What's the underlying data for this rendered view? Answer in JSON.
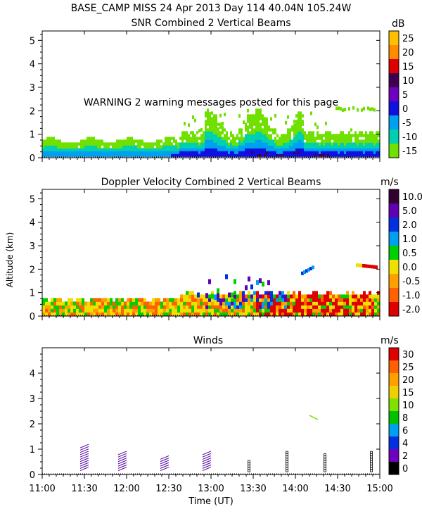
{
  "header": {
    "title": "BASE_CAMP MISS  24 Apr 2013 Day 114 40.04N 105.24W"
  },
  "chart_data": [
    {
      "type": "heatmap",
      "title": "SNR Combined 2 Vertical Beams",
      "units": "dB",
      "ylabel": "",
      "yticks": [
        "0",
        "1",
        "2",
        "3",
        "4",
        "5"
      ],
      "ylim": [
        0,
        5.4
      ],
      "warning": "WARNING  2 warning messages posted for this page",
      "colorbar": {
        "labels": [
          "25",
          "20",
          "15",
          "10",
          "5",
          "0",
          "-5",
          "-10",
          "-15"
        ],
        "colors": [
          "#ffc000",
          "#ff8c00",
          "#e00000",
          "#400050",
          "#7000c0",
          "#1010e0",
          "#00a0f0",
          "#00d0b0",
          "#70e000"
        ]
      }
    },
    {
      "type": "heatmap",
      "title": "Doppler Velocity Combined 2 Vertical Beams",
      "units": "m/s",
      "ylabel": "Altitude (km)",
      "yticks": [
        "0",
        "1",
        "2",
        "3",
        "4",
        "5"
      ],
      "ylim": [
        0,
        5.4
      ],
      "colorbar": {
        "labels": [
          "10.0",
          "5.0",
          "2.0",
          "1.0",
          "0.5",
          "0.0",
          "-0.5",
          "-1.0",
          "-2.0"
        ],
        "colors": [
          "#300030",
          "#6000b0",
          "#0030e0",
          "#00a0f0",
          "#00d000",
          "#f0e000",
          "#ffa000",
          "#ff6000",
          "#e00000"
        ]
      }
    },
    {
      "type": "scatter",
      "title": "Winds",
      "units": "m/s",
      "ylabel": "",
      "yticks": [
        "0",
        "1",
        "2",
        "3",
        "4"
      ],
      "ylim": [
        0,
        5
      ],
      "colorbar": {
        "labels": [
          "30",
          "25",
          "20",
          "15",
          "10",
          "8",
          "6",
          "4",
          "2",
          "0"
        ],
        "colors": [
          "#e00000",
          "#ff6000",
          "#ffa000",
          "#f0d000",
          "#80e000",
          "#00c000",
          "#00a0f0",
          "#0030e0",
          "#7000c0",
          "#000000"
        ]
      },
      "profile_times_hours": [
        11.45,
        11.9,
        12.4,
        12.9,
        13.45,
        13.9,
        14.35,
        14.9
      ],
      "profile_top_km": [
        1.05,
        0.85,
        0.65,
        0.8,
        0.55,
        0.9,
        0.8,
        0.95
      ]
    }
  ],
  "x_axis": {
    "label": "Time (UT)",
    "ticks": [
      "11:00",
      "11:30",
      "12:00",
      "12:30",
      "13:00",
      "13:30",
      "14:00",
      "14:30",
      "15:00"
    ],
    "xlim_hours": [
      11,
      15
    ]
  }
}
